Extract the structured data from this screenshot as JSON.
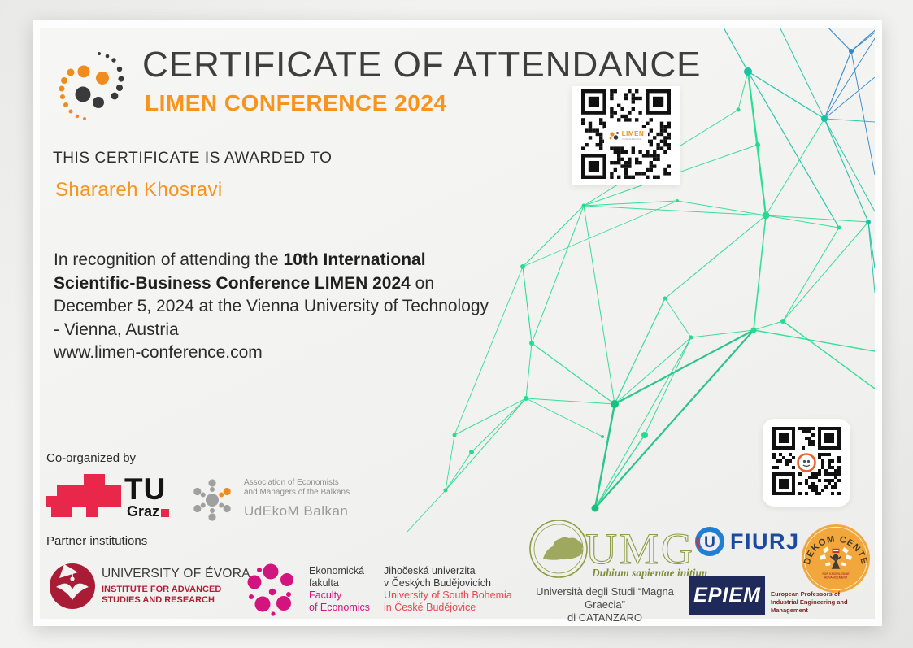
{
  "header": {
    "title": "CERTIFICATE OF ATTENDANCE",
    "subtitle": "LIMEN CONFERENCE 2024",
    "logo": "limen-dots-logo"
  },
  "award": {
    "label": "THIS CERTIFICATE IS AWARDED TO",
    "recipient": "Sharareh Khosravi"
  },
  "body": {
    "prefix": "In recognition of attending the ",
    "highlight": "10th International Scientific-Business Conference LIMEN 2024",
    "suffix": " on December 5, 2024 at the Vienna University of Technology - Vienna, Austria",
    "website": "www.limen-conference.com"
  },
  "qr_codes": {
    "top": {
      "center_label": "LIMEN",
      "center_sub": "CONFERENCE"
    },
    "side": {
      "center_icon": "orange-mascot"
    }
  },
  "organizers": {
    "heading": "Co-organized by",
    "tu_graz": {
      "acronym": "TU",
      "city": "Graz"
    },
    "udekom_balkan": {
      "assoc_line1": "Association of Economists",
      "assoc_line2": "and Managers of the Balkans",
      "name": "UdEkoM Balkan"
    }
  },
  "partners": {
    "heading": "Partner institutions",
    "evora": {
      "name": "UNIVERSITY OF ÉVORA",
      "institute_line1": "INSTITUTE FOR ADVANCED",
      "institute_line2": "STUDIES AND RESEARCH"
    },
    "economics_faculty": {
      "native_line1": "Ekonomická",
      "native_line2": "fakulta",
      "english_line1": "Faculty",
      "english_line2": "of Economics"
    },
    "south_bohemia": {
      "native_line1": "Jihočeská univerzita",
      "native_line2": "v Českých Budějovicích",
      "english_line1": "University of South Bohemia",
      "english_line2": "in České Budějovice"
    },
    "magna_graecia": {
      "acronym": "UMG",
      "motto": "Dubium sapientae initium",
      "name_line1": "Università degli Studi “Magna Graecia”",
      "name_line2": "di CATANZARO"
    },
    "fiurj": {
      "name": "FIURJ"
    },
    "udekom_center": {
      "arc_text": "UDEKOM CENTER",
      "tagline_line1": "FOR KNOWLEDGE",
      "tagline_line2": "ADVANCEMENT"
    },
    "epiem": {
      "name": "EPIEM",
      "desc_line1": "European Professors of",
      "desc_line2": "Industrial Engineering and Management"
    }
  },
  "colors": {
    "accent_orange": "#F7941D",
    "network_green": "#22dd8e",
    "network_teal": "#18c2a2",
    "network_blue": "#2f86c8",
    "tu_graz_red": "#E8274B",
    "evora_red": "#A81D35",
    "economics_pink": "#D4147E",
    "bohemia_red": "#E84752",
    "umg_olive": "#8F9C45",
    "fiurj_blue": "#1B4A9E",
    "epiem_navy": "#1F2A5A",
    "udekom_badge_orange": "#F2A73D"
  }
}
